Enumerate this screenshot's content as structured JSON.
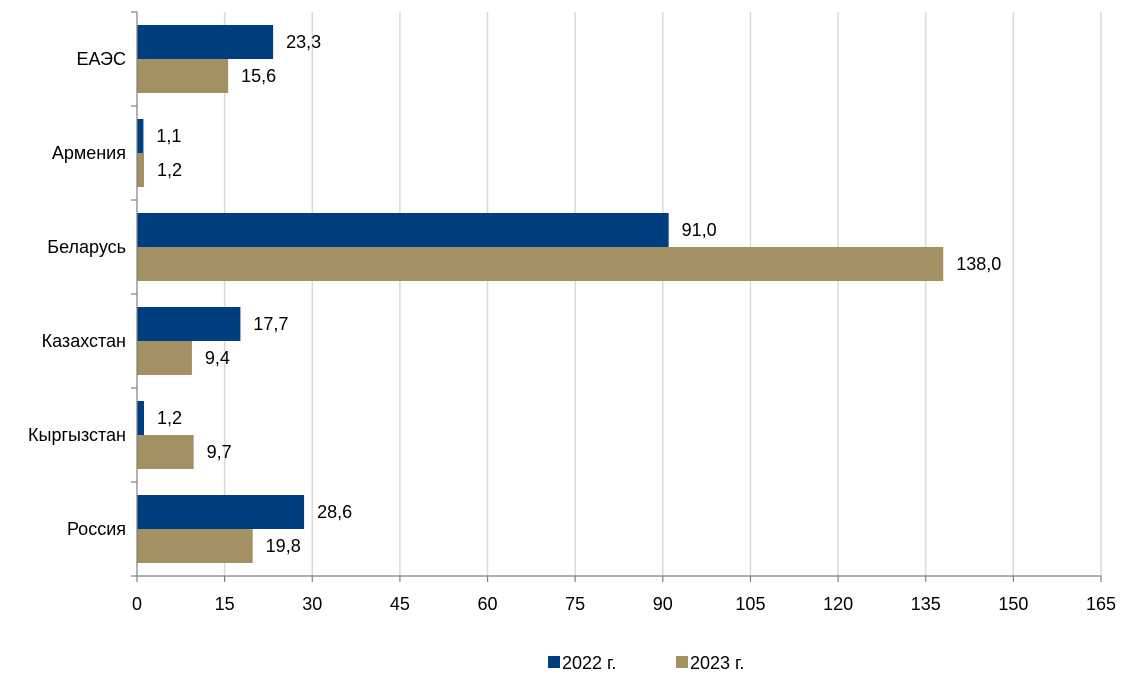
{
  "chart_data": {
    "type": "bar",
    "orientation": "horizontal",
    "categories": [
      "ЕАЭС",
      "Армения",
      "Беларусь",
      "Казахстан",
      "Кыргызстан",
      "Россия"
    ],
    "series": [
      {
        "name": "2022 г.",
        "color": "#003f7f",
        "values": [
          23.3,
          1.1,
          91.0,
          17.7,
          1.2,
          28.6
        ],
        "labels": [
          "23,3",
          "1,1",
          "91,0",
          "17,7",
          "1,2",
          "28,6"
        ]
      },
      {
        "name": "2023 г.",
        "color": "#a39063",
        "values": [
          15.6,
          1.2,
          138.0,
          9.4,
          9.7,
          19.8
        ],
        "labels": [
          "15,6",
          "1,2",
          "138,0",
          "9,4",
          "9,7",
          "19,8"
        ]
      }
    ],
    "x_ticks": [
      "0",
      "15",
      "30",
      "45",
      "60",
      "75",
      "90",
      "105",
      "120",
      "135",
      "150",
      "165"
    ],
    "xlim": [
      0,
      165
    ],
    "grid": true,
    "legend_position": "bottom",
    "title": "",
    "xlabel": "",
    "ylabel": ""
  }
}
